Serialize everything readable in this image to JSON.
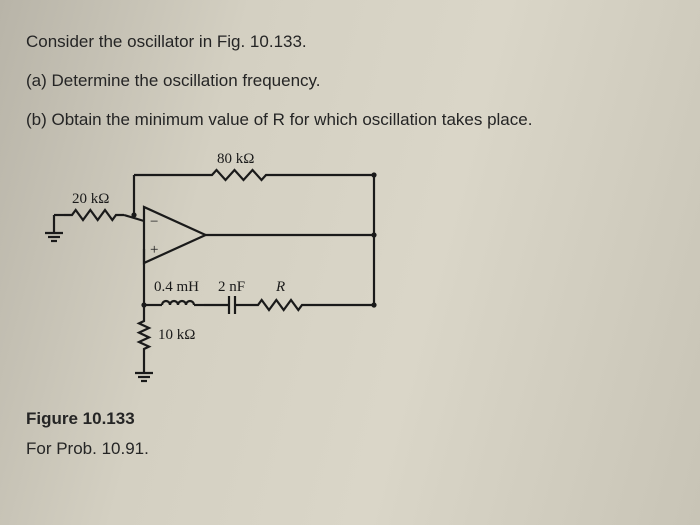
{
  "problem": {
    "intro": "Consider the oscillator in Fig. 10.133.",
    "part_a": "(a) Determine the oscillation frequency.",
    "part_b": "(b) Obtain the minimum value of R for which oscillation takes place."
  },
  "circuit": {
    "components": {
      "r_feedback_top": "80 kΩ",
      "r_input": "20 kΩ",
      "inductor": "0.4 mH",
      "capacitor": "2 nF",
      "r_series": "R",
      "r_shunt": "10 kΩ"
    },
    "opamp": {
      "plus": "+",
      "minus": "−"
    },
    "style": {
      "stroke": "#1a1a1a",
      "stroke_width": 2.2,
      "zigzag_amp": 5,
      "coil_r": 4
    }
  },
  "figure": {
    "label": "Figure 10.133",
    "for": "For Prob. 10.91."
  }
}
